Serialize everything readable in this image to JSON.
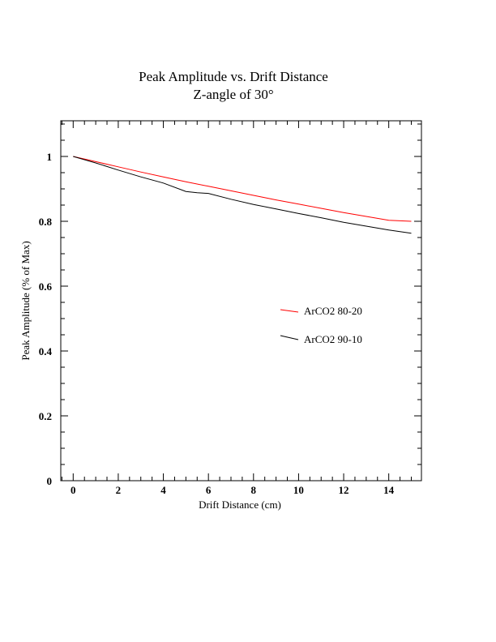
{
  "chart_data": {
    "type": "line",
    "title": "Peak Amplitude vs. Drift Distance",
    "subtitle": "Z-angle of 30°",
    "xlabel": "Drift Distance (cm)",
    "ylabel": "Peak Amplitude (% of Max)",
    "xlim": [
      -0.55,
      15.45
    ],
    "ylim": [
      0,
      1.11
    ],
    "x_ticks": [
      0,
      2,
      4,
      6,
      8,
      10,
      12,
      14
    ],
    "x_tick_labels": [
      "0",
      "2",
      "4",
      "6",
      "8",
      "10",
      "12",
      "14"
    ],
    "y_ticks": [
      0,
      0.2,
      0.4,
      0.6,
      0.8,
      1
    ],
    "y_tick_labels": [
      "0",
      "0.2",
      "0.4",
      "0.6",
      "0.8",
      "1"
    ],
    "grid": false,
    "legend_position": "right",
    "series": [
      {
        "name": "ArCO2 80-20",
        "color": "#ff0000",
        "x": [
          0,
          1,
          2,
          3,
          4,
          5,
          6,
          7,
          8,
          9,
          10,
          11,
          12,
          13,
          14,
          15
        ],
        "y": [
          1.0,
          0.984,
          0.968,
          0.952,
          0.937,
          0.922,
          0.908,
          0.894,
          0.88,
          0.866,
          0.853,
          0.84,
          0.827,
          0.815,
          0.803,
          0.8
        ]
      },
      {
        "name": "ArCO2 90-10",
        "color": "#000000",
        "x": [
          0,
          1,
          2,
          3,
          4,
          5,
          5.5,
          6,
          7,
          8,
          9,
          10,
          11,
          12,
          13,
          14,
          15
        ],
        "y": [
          1.0,
          0.98,
          0.958,
          0.937,
          0.918,
          0.892,
          0.888,
          0.886,
          0.868,
          0.852,
          0.838,
          0.824,
          0.811,
          0.797,
          0.785,
          0.773,
          0.763
        ]
      }
    ]
  }
}
